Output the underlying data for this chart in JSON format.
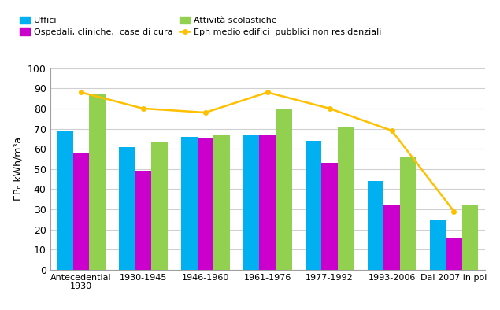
{
  "categories": [
    "Antecedential\n1930",
    "1930-1945",
    "1946-1960",
    "1961-1976",
    "1977-1992",
    "1993-2006",
    "Dal 2007 in poi"
  ],
  "uffici": [
    69,
    61,
    66,
    67,
    64,
    44,
    25
  ],
  "ospedali": [
    58,
    49,
    65,
    67,
    53,
    32,
    16
  ],
  "scolastiche": [
    87,
    63,
    67,
    80,
    71,
    56,
    32
  ],
  "eph_medio": [
    88,
    80,
    78,
    88,
    80,
    69,
    29
  ],
  "bar_colors": {
    "uffici": "#00b0f0",
    "ospedali": "#cc00cc",
    "scolastiche": "#92d050"
  },
  "line_color": "#ffc000",
  "ylabel": "EPₕ kWh/m³a",
  "ylim": [
    0,
    100
  ],
  "yticks": [
    0,
    10,
    20,
    30,
    40,
    50,
    60,
    70,
    80,
    90,
    100
  ],
  "legend_labels": [
    "Uffici",
    "Ospedali, cliniche,  case di cura",
    "Attività scolastiche",
    "Eph medio edifici  pubblici non residenziali"
  ],
  "background_color": "#ffffff",
  "grid_color": "#d0d0d0"
}
